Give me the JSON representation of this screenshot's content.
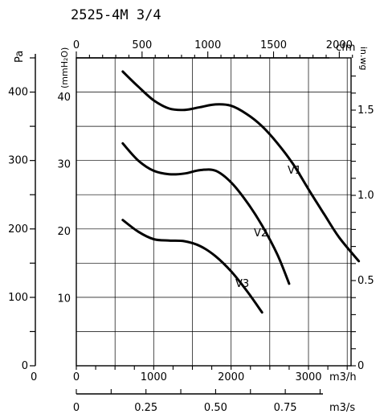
{
  "chart_data": {
    "type": "line",
    "title": "2525-4M 3/4",
    "x": [
      0,
      500,
      1000,
      1500,
      2000,
      2500,
      3000,
      3500
    ],
    "ylim": [
      0,
      450
    ],
    "xlim": [
      0,
      3550
    ],
    "grid": true,
    "series": [
      {
        "name": "V1",
        "x": [
          600,
          800,
          1000,
          1200,
          1400,
          1600,
          1800,
          2000,
          2200,
          2400,
          2600,
          2800,
          3000,
          3200,
          3400,
          3650
        ],
        "values": [
          430,
          408,
          388,
          376,
          374,
          378,
          382,
          380,
          368,
          350,
          325,
          295,
          258,
          222,
          187,
          153
        ]
      },
      {
        "name": "V2",
        "x": [
          600,
          800,
          1000,
          1200,
          1400,
          1600,
          1800,
          2000,
          2200,
          2400,
          2600,
          2750
        ],
        "values": [
          325,
          300,
          285,
          280,
          281,
          286,
          285,
          268,
          240,
          205,
          162,
          120
        ]
      },
      {
        "name": "V3",
        "x": [
          600,
          800,
          1000,
          1200,
          1400,
          1600,
          1800,
          2000,
          2200,
          2400
        ],
        "values": [
          213,
          196,
          185,
          183,
          182,
          175,
          160,
          138,
          110,
          78
        ]
      }
    ],
    "axes": {
      "left_pa": {
        "label": "Pa",
        "ticks": [
          "0",
          "100",
          "200",
          "300",
          "400"
        ]
      },
      "inner_mmh2o": {
        "label": "(mmH₂O)",
        "ticks": [
          "10",
          "20",
          "30",
          "40"
        ]
      },
      "top_cfm": {
        "label": "cfm",
        "ticks": [
          "0",
          "500",
          "1000",
          "1500",
          "2000"
        ]
      },
      "right_inwg": {
        "label": "in.wg",
        "ticks": [
          "0",
          "0.5",
          "1.0",
          "1.5"
        ]
      },
      "bottom_m3h": {
        "label": "m3/h",
        "ticks": [
          "0",
          "1000",
          "2000",
          "3000"
        ]
      },
      "bottom_m3s": {
        "label": "m3/s",
        "ticks": [
          "0",
          "0.25",
          "0.50",
          "0.75"
        ]
      },
      "left_axis_origin": "0"
    }
  }
}
